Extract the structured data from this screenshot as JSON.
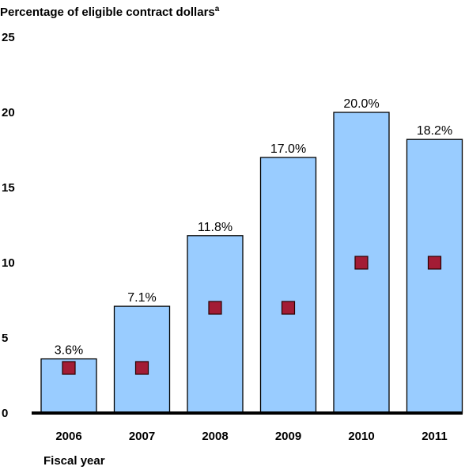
{
  "chart_data": {
    "type": "bar",
    "title": "Percentage of eligible contract dollars",
    "title_superscript": "a",
    "xlabel": "Fiscal year",
    "ylabel": "",
    "categories": [
      "2006",
      "2007",
      "2008",
      "2009",
      "2010",
      "2011"
    ],
    "ylim": [
      0,
      25
    ],
    "yticks": [
      "0",
      "5",
      "10",
      "15",
      "20",
      "25"
    ],
    "grid": false,
    "series": [
      {
        "type": "bar",
        "values": [
          3.6,
          7.1,
          11.8,
          17.0,
          20.0,
          18.2
        ],
        "labels": [
          "3.6%",
          "7.1%",
          "11.8%",
          "17.0%",
          "20.0%",
          "18.2%"
        ],
        "color": "#99ccff"
      },
      {
        "type": "marker",
        "values": [
          3,
          3,
          7,
          7,
          10,
          10
        ],
        "color": "#a31c35"
      }
    ]
  }
}
